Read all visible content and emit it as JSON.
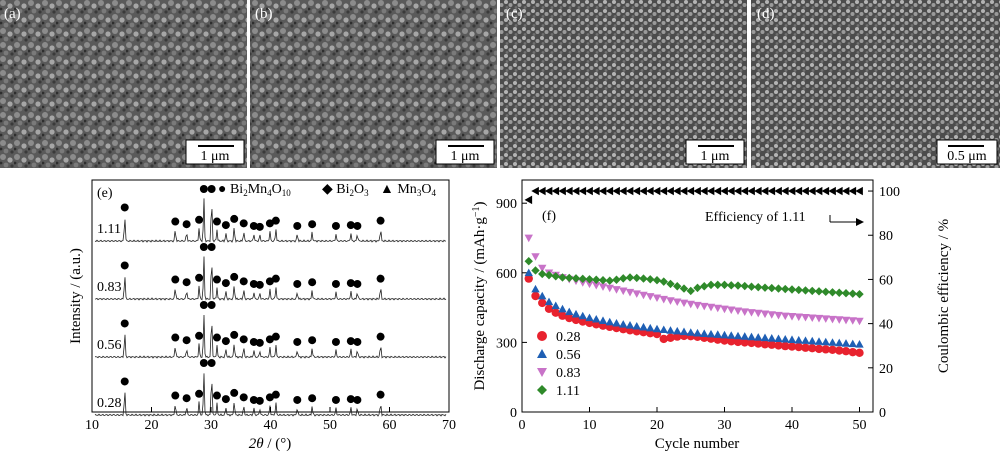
{
  "sem": {
    "panels": [
      {
        "label": "(a)",
        "scale": "1 μm"
      },
      {
        "label": "(b)",
        "scale": "1 μm"
      },
      {
        "label": "(c)",
        "scale": "1 μm"
      },
      {
        "label": "(d)",
        "scale": "0.5 μm"
      }
    ]
  },
  "chart_data": [
    {
      "type": "line",
      "panel": "(e)",
      "title": "",
      "xlabel_symbol": "2θ",
      "xlabel_unit": " / (°)",
      "ylabel": "Intensity / (a.u.)",
      "xlim": [
        10,
        70
      ],
      "xticks": [
        10,
        20,
        30,
        40,
        50,
        60,
        70
      ],
      "legend": [
        {
          "symbol": "●",
          "text": "Bi",
          "sub1": "2",
          "text2": "Mn",
          "sub2": "4",
          "text3": "O",
          "sub3": "10"
        },
        {
          "symbol": "◆",
          "text": "Bi",
          "sub1": "2",
          "text2": "O",
          "sub2": "3"
        },
        {
          "symbol": "▲",
          "text": "Mn",
          "sub1": "3",
          "text2": "O",
          "sub2": "4"
        }
      ],
      "peak_marker": "●",
      "peaks_2theta": [
        15.5,
        24.0,
        25.9,
        28.0,
        28.8,
        30.1,
        31.0,
        32.5,
        33.9,
        35.5,
        37.2,
        38.2,
        39.9,
        40.9,
        44.5,
        47.0,
        51.0,
        53.5,
        54.6,
        58.5
      ],
      "peak_heights": [
        0.58,
        0.26,
        0.2,
        0.3,
        1.0,
        1.0,
        0.26,
        0.18,
        0.32,
        0.22,
        0.16,
        0.14,
        0.22,
        0.28,
        0.16,
        0.2,
        0.16,
        0.18,
        0.16,
        0.28
      ],
      "series": [
        {
          "name": "1.11"
        },
        {
          "name": "0.83"
        },
        {
          "name": "0.56"
        },
        {
          "name": "0.28"
        }
      ]
    },
    {
      "type": "scatter",
      "panel": "(f)",
      "xlabel": "Cycle number",
      "ylabel": "Discharge capacity / (mAh·g",
      "ylabel_sup": "−1",
      "ylabel_close": ")",
      "y2label": "Coulombic efficiency / %",
      "xlim": [
        0,
        52
      ],
      "ylim": [
        0,
        1000
      ],
      "y2lim": [
        0,
        105
      ],
      "xticks": [
        0,
        10,
        20,
        30,
        40,
        50
      ],
      "yticks": [
        0,
        300,
        600,
        900
      ],
      "y2ticks": [
        0,
        20,
        40,
        60,
        80,
        100
      ],
      "annotation": "Efficiency of 1.11",
      "series": [
        {
          "name": "0.28",
          "color": "#e8222e",
          "marker": "circle",
          "values": [
            575,
            500,
            470,
            445,
            428,
            415,
            405,
            397,
            390,
            384,
            378,
            372,
            367,
            362,
            357,
            352,
            348,
            344,
            340,
            336,
            315,
            320,
            325,
            328,
            327,
            324,
            320,
            316,
            312,
            308,
            305,
            302,
            300,
            298,
            295,
            292,
            290,
            287,
            284,
            282,
            280,
            277,
            275,
            272,
            270,
            268,
            265,
            262,
            258,
            255
          ]
        },
        {
          "name": "0.56",
          "color": "#1f5fb4",
          "marker": "triangle-up",
          "values": [
            600,
            530,
            500,
            475,
            458,
            444,
            432,
            422,
            414,
            406,
            400,
            394,
            388,
            383,
            378,
            374,
            370,
            366,
            362,
            358,
            355,
            352,
            349,
            346,
            343,
            340,
            338,
            336,
            334,
            332,
            330,
            328,
            326,
            324,
            322,
            320,
            318,
            316,
            314,
            312,
            310,
            308,
            306,
            304,
            302,
            300,
            298,
            296,
            294,
            292
          ]
        },
        {
          "name": "0.83",
          "color": "#c873c8",
          "marker": "triangle-down",
          "values": [
            750,
            670,
            620,
            600,
            590,
            580,
            572,
            565,
            558,
            552,
            546,
            540,
            534,
            528,
            522,
            516,
            510,
            504,
            498,
            492,
            486,
            480,
            475,
            470,
            465,
            460,
            456,
            452,
            448,
            444,
            440,
            436,
            432,
            429,
            426,
            423,
            420,
            417,
            414,
            412,
            410,
            408,
            406,
            404,
            402,
            400,
            398,
            396,
            394,
            392
          ]
        },
        {
          "name": "1.11",
          "color": "#2f8a2a",
          "marker": "diamond",
          "values": [
            650,
            610,
            595,
            590,
            585,
            580,
            578,
            576,
            574,
            572,
            570,
            568,
            566,
            570,
            576,
            580,
            578,
            575,
            572,
            568,
            562,
            552,
            542,
            532,
            522,
            535,
            542,
            548,
            548,
            548,
            546,
            545,
            543,
            540,
            538,
            536,
            534,
            532,
            530,
            528,
            526,
            524,
            522,
            520,
            518,
            516,
            514,
            512,
            510,
            508
          ]
        }
      ],
      "efficiency": {
        "name": "Efficiency of 1.11",
        "marker": "triangle-left",
        "values": [
          96,
          100,
          100,
          100,
          100,
          100,
          100,
          100,
          100,
          100,
          100,
          100,
          100,
          100,
          100,
          100,
          100,
          100,
          100,
          100,
          100,
          100,
          100,
          100,
          100,
          100,
          100,
          100,
          100,
          100,
          100,
          100,
          100,
          100,
          100,
          100,
          100,
          100,
          100,
          100,
          100,
          100,
          100,
          100,
          100,
          100,
          100,
          100,
          100,
          100
        ]
      }
    }
  ]
}
